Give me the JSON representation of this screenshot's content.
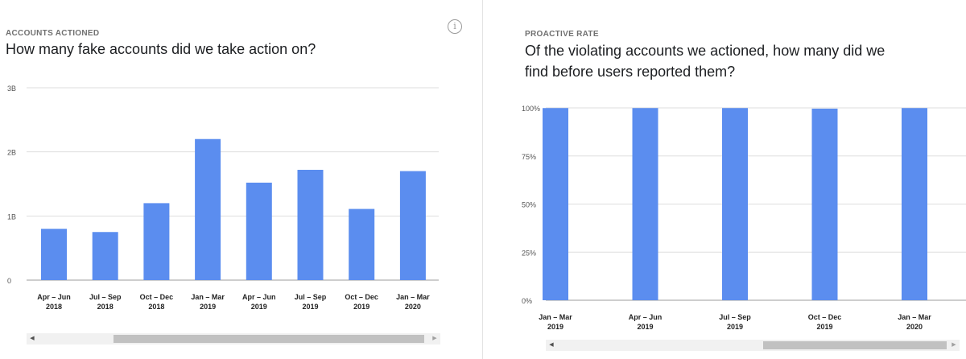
{
  "left": {
    "eyebrow": "ACCOUNTS ACTIONED",
    "headline": "How many fake accounts did we take action on?",
    "info_icon_glyph": "i"
  },
  "right": {
    "eyebrow": "PROACTIVE RATE",
    "headline_line1": "Of the violating accounts we actioned, how many did we",
    "headline_line2": "find before users reported them?"
  },
  "scrollbar": {
    "left_arrow": "◀",
    "right_arrow": "▶"
  },
  "colors": {
    "bar": "#5b8def",
    "grid": "#dedede",
    "axis_text": "#555555",
    "tick_text": "#222222"
  },
  "chart_data": [
    {
      "type": "bar",
      "title": "How many fake accounts did we take action on?",
      "categories": [
        [
          "Apr – Jun",
          "2018"
        ],
        [
          "Jul – Sep",
          "2018"
        ],
        [
          "Oct – Dec",
          "2018"
        ],
        [
          "Jan – Mar",
          "2019"
        ],
        [
          "Apr – Jun",
          "2019"
        ],
        [
          "Jul – Sep",
          "2019"
        ],
        [
          "Oct – Dec",
          "2019"
        ],
        [
          "Jan – Mar",
          "2020"
        ]
      ],
      "values": [
        0.8,
        0.75,
        1.2,
        2.2,
        1.52,
        1.72,
        1.11,
        1.7
      ],
      "yticks": [
        {
          "value": 0,
          "label": "0"
        },
        {
          "value": 1,
          "label": "1B"
        },
        {
          "value": 2,
          "label": "2B"
        },
        {
          "value": 3,
          "label": "3B"
        }
      ],
      "ylim": [
        0,
        3
      ],
      "grid": true
    },
    {
      "type": "bar",
      "title": "Of the violating accounts we actioned, how many did we find before users reported them?",
      "categories": [
        [
          "Jan – Mar",
          "2019"
        ],
        [
          "Apr – Jun",
          "2019"
        ],
        [
          "Jul – Sep",
          "2019"
        ],
        [
          "Oct – Dec",
          "2019"
        ],
        [
          "Jan – Mar",
          "2020"
        ]
      ],
      "values": [
        99.9,
        99.9,
        99.9,
        99.6,
        99.9
      ],
      "yticks": [
        {
          "value": 0,
          "label": "0%"
        },
        {
          "value": 25,
          "label": "25%"
        },
        {
          "value": 50,
          "label": "50%"
        },
        {
          "value": 75,
          "label": "75%"
        },
        {
          "value": 100,
          "label": "100%"
        }
      ],
      "ylim": [
        0,
        100
      ],
      "grid": true
    }
  ]
}
